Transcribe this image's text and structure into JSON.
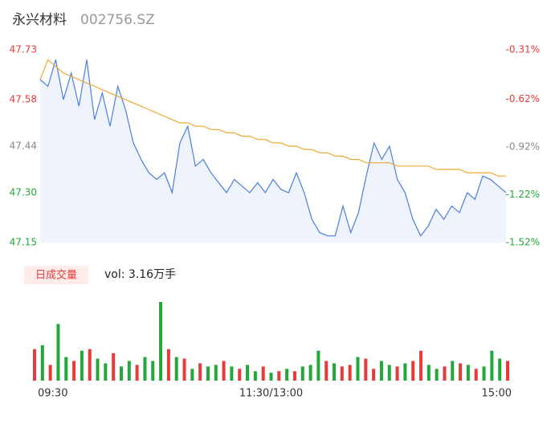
{
  "chart_data": [
    {
      "type": "line",
      "title": "永兴材料",
      "subtitle": "002756.SZ",
      "x": [
        0,
        4,
        8,
        12,
        16,
        20,
        24,
        28,
        32,
        36,
        40,
        44,
        48,
        52,
        56,
        60,
        64,
        68,
        72,
        76,
        80,
        84,
        88,
        92,
        96,
        100,
        104,
        108,
        112,
        116,
        120,
        124,
        128,
        132,
        136,
        140,
        144,
        148,
        152,
        156,
        160,
        164,
        168,
        172,
        176,
        180,
        184,
        188,
        192,
        196,
        200,
        204,
        208,
        212,
        216,
        220,
        224,
        228,
        232,
        236,
        240
      ],
      "xlim": [
        0,
        240
      ],
      "series": [
        {
          "color": "#4a7fe0",
          "area": "#eef3fc",
          "values": [
            47.64,
            47.62,
            47.7,
            47.58,
            47.66,
            47.56,
            47.7,
            47.52,
            47.6,
            47.5,
            47.62,
            47.55,
            47.45,
            47.4,
            47.36,
            47.34,
            47.36,
            47.3,
            47.45,
            47.5,
            47.38,
            47.4,
            47.36,
            47.33,
            47.3,
            47.34,
            47.32,
            47.3,
            47.33,
            47.3,
            47.34,
            47.31,
            47.3,
            47.36,
            47.3,
            47.22,
            47.18,
            47.17,
            47.17,
            47.26,
            47.18,
            47.24,
            47.35,
            47.45,
            47.4,
            47.44,
            47.34,
            47.3,
            47.22,
            47.17,
            47.2,
            47.25,
            47.22,
            47.26,
            47.24,
            47.3,
            47.28,
            47.35,
            47.34,
            47.32,
            47.3
          ]
        },
        {
          "color": "#f0a830",
          "values": [
            47.64,
            47.7,
            47.68,
            47.66,
            47.65,
            47.64,
            47.63,
            47.62,
            47.61,
            47.6,
            47.59,
            47.58,
            47.57,
            47.56,
            47.55,
            47.54,
            47.53,
            47.52,
            47.51,
            47.51,
            47.5,
            47.5,
            47.49,
            47.49,
            47.48,
            47.48,
            47.47,
            47.47,
            47.46,
            47.46,
            47.45,
            47.45,
            47.44,
            47.44,
            47.43,
            47.43,
            47.42,
            47.42,
            47.41,
            47.41,
            47.4,
            47.4,
            47.39,
            47.39,
            47.39,
            47.39,
            47.38,
            47.38,
            47.38,
            47.38,
            47.38,
            47.37,
            47.37,
            47.37,
            47.37,
            47.36,
            47.36,
            47.36,
            47.36,
            47.35,
            47.35
          ]
        }
      ],
      "ylim": [
        47.15,
        47.73
      ],
      "yticks": [
        47.73,
        47.58,
        47.44,
        {
          "value": 47.3,
          "label": "47.30"
        },
        47.15
      ],
      "ytick_colors": [
        "#e83a3a",
        "#e83a3a",
        "#888888",
        "#22a83a",
        "#22a83a"
      ],
      "y2lim": [
        -1.52,
        -0.31
      ],
      "y2ticks": [
        {
          "value": -0.31,
          "label": "-0.31%"
        },
        {
          "value": -0.62,
          "label": "-0.62%"
        },
        {
          "value": -0.92,
          "label": "-0.92%"
        },
        {
          "value": -1.22,
          "label": "-1.22%"
        },
        {
          "value": -1.52,
          "label": "-1.52%"
        }
      ],
      "y2tick_colors": [
        "#e83a3a",
        "#e83a3a",
        "#888888",
        "#22a83a",
        "#22a83a"
      ]
    },
    {
      "type": "bar",
      "title": "日成交量",
      "annotation": "vol: 3.16万手",
      "x": [
        0,
        4,
        8,
        12,
        16,
        20,
        24,
        28,
        32,
        36,
        40,
        44,
        48,
        52,
        56,
        60,
        64,
        68,
        72,
        76,
        80,
        84,
        88,
        92,
        96,
        100,
        104,
        108,
        112,
        116,
        120,
        124,
        128,
        132,
        136,
        140,
        144,
        148,
        152,
        156,
        160,
        164,
        168,
        172,
        176,
        180,
        184,
        188,
        192,
        196,
        200,
        204,
        208,
        212,
        216,
        220,
        224,
        228,
        232,
        236,
        240
      ],
      "xlim": [
        0,
        240
      ],
      "xticks": [
        {
          "value": 0,
          "label": "09:30"
        },
        {
          "value": 120,
          "label": "11:30/13:00"
        },
        {
          "value": 240,
          "label": "15:00"
        }
      ],
      "values": [
        40,
        45,
        20,
        72,
        30,
        25,
        38,
        40,
        28,
        22,
        35,
        18,
        25,
        20,
        30,
        25,
        100,
        40,
        30,
        28,
        15,
        22,
        18,
        20,
        25,
        18,
        15,
        20,
        12,
        18,
        10,
        12,
        15,
        12,
        18,
        20,
        38,
        25,
        22,
        18,
        20,
        30,
        28,
        15,
        25,
        20,
        18,
        22,
        25,
        38,
        20,
        15,
        18,
        25,
        22,
        20,
        15,
        18,
        38,
        28,
        25
      ],
      "colors": [
        "#e83a3a",
        "#22a83a",
        "#e83a3a",
        "#22a83a",
        "#22a83a",
        "#e83a3a",
        "#22a83a",
        "#e83a3a",
        "#22a83a",
        "#22a83a",
        "#e83a3a",
        "#22a83a",
        "#22a83a",
        "#e83a3a",
        "#22a83a",
        "#22a83a",
        "#22a83a",
        "#e83a3a",
        "#22a83a",
        "#e83a3a",
        "#22a83a",
        "#e83a3a",
        "#22a83a",
        "#22a83a",
        "#e83a3a",
        "#22a83a",
        "#e83a3a",
        "#22a83a",
        "#22a83a",
        "#e83a3a",
        "#22a83a",
        "#e83a3a",
        "#22a83a",
        "#e83a3a",
        "#22a83a",
        "#22a83a",
        "#22a83a",
        "#e83a3a",
        "#22a83a",
        "#e83a3a",
        "#e83a3a",
        "#22a83a",
        "#e83a3a",
        "#e83a3a",
        "#22a83a",
        "#22a83a",
        "#e83a3a",
        "#22a83a",
        "#e83a3a",
        "#e83a3a",
        "#22a83a",
        "#22a83a",
        "#e83a3a",
        "#22a83a",
        "#e83a3a",
        "#22a83a",
        "#e83a3a",
        "#22a83a",
        "#22a83a",
        "#22a83a",
        "#e83a3a"
      ],
      "ylim": [
        0,
        100
      ]
    }
  ]
}
